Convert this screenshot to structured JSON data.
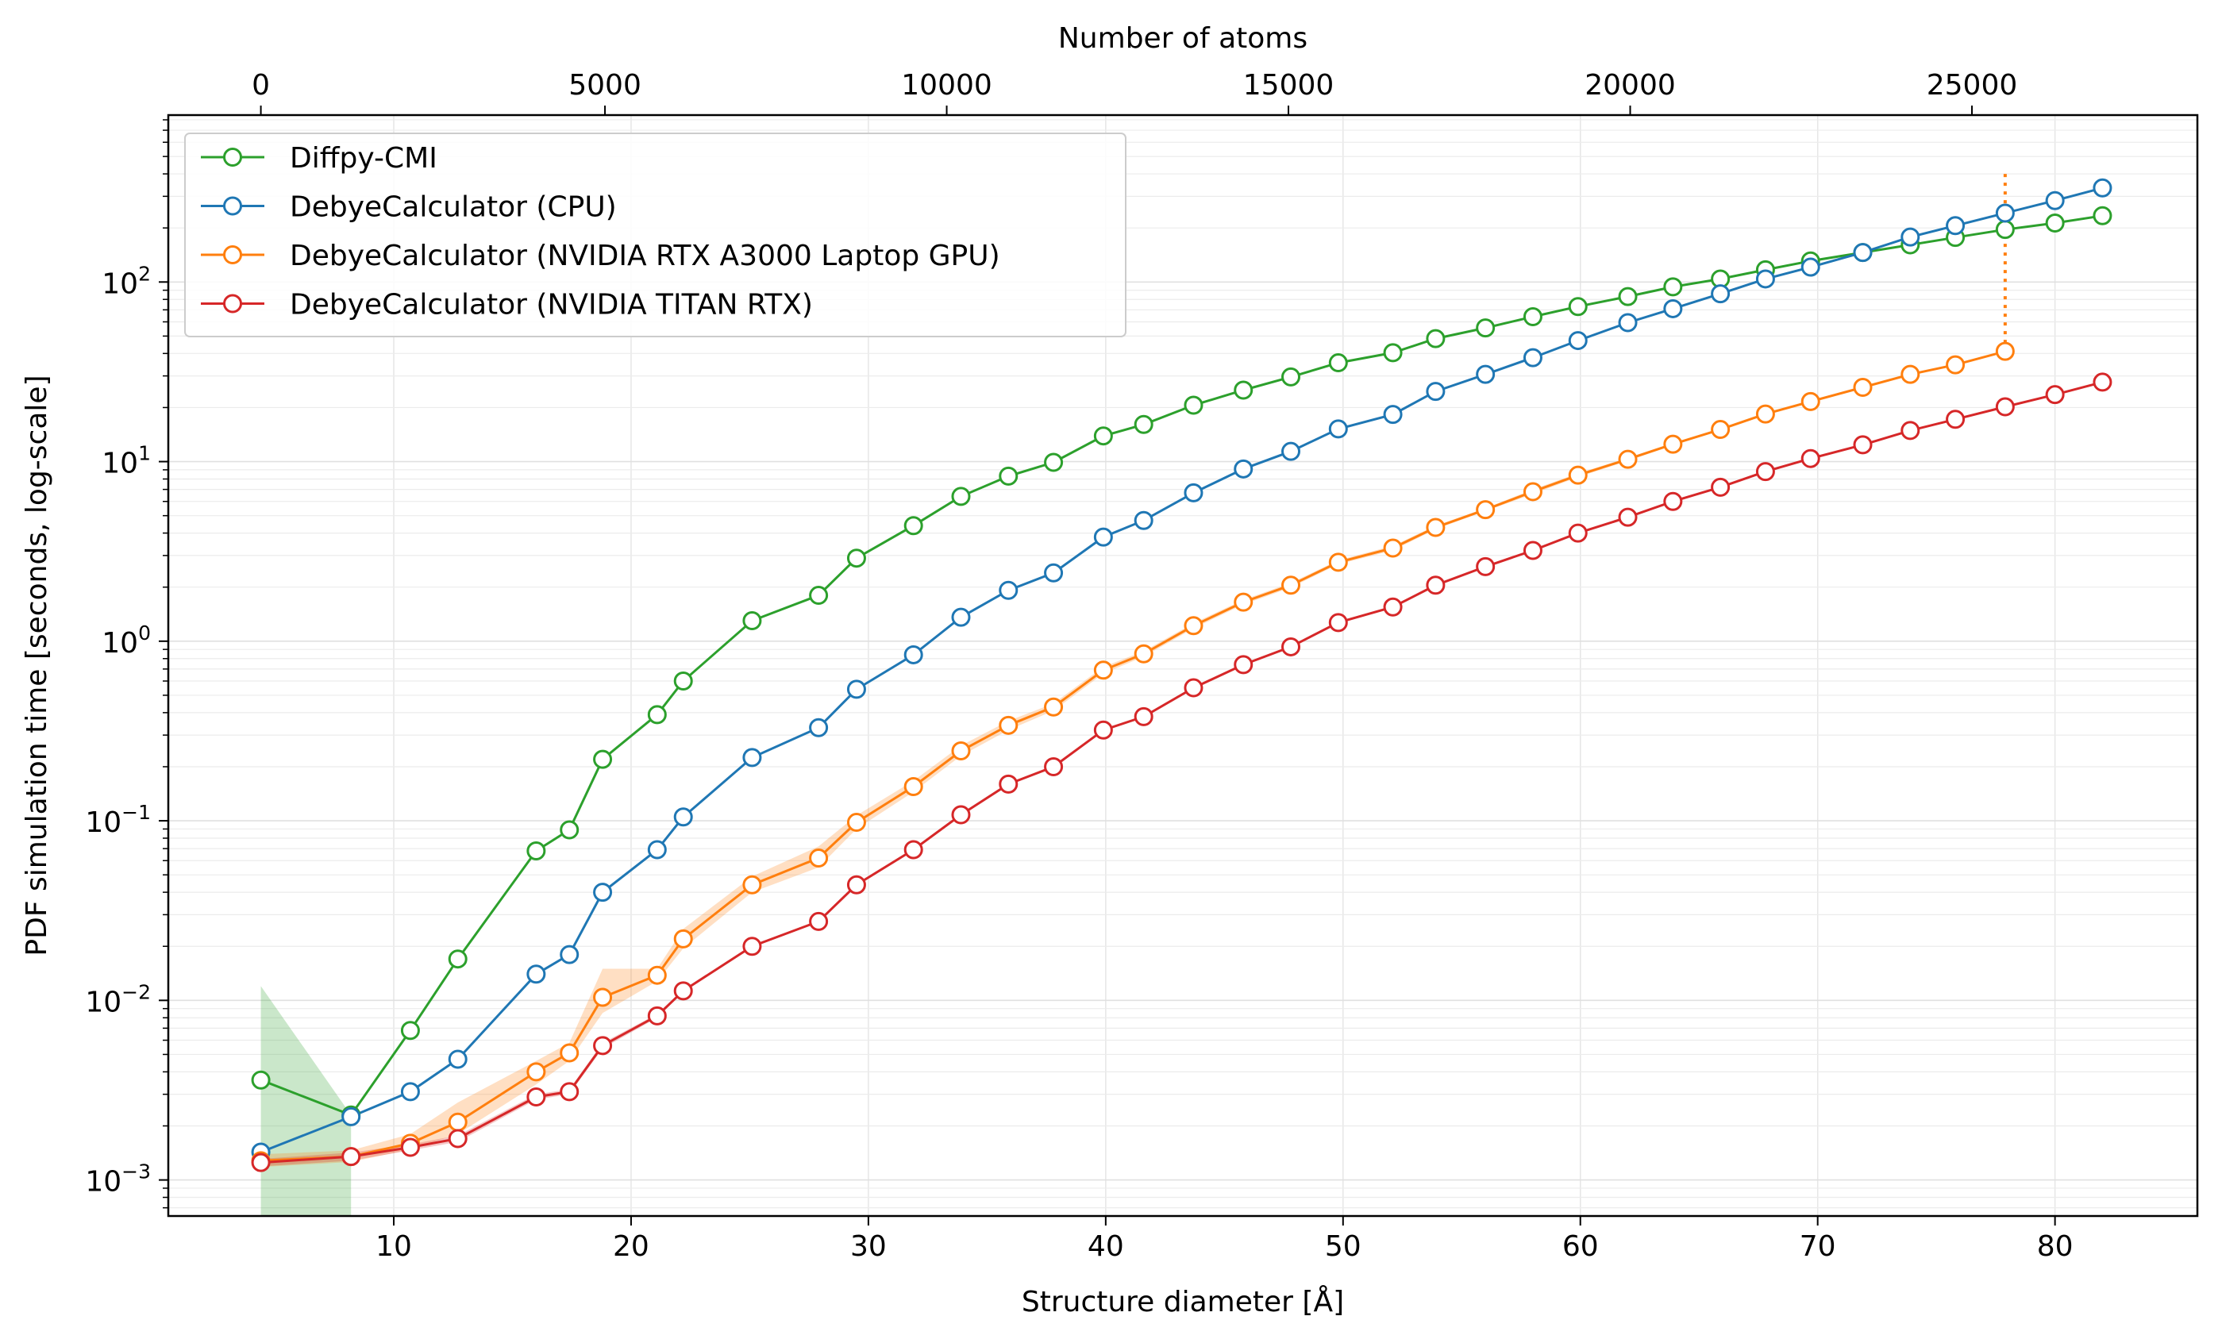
{
  "chart_data": {
    "type": "line",
    "xlabel": "Structure diameter [Å]",
    "ylabel": "PDF simulation time [seconds, log-scale]",
    "x2label": "Number of atoms",
    "xlim": [
      0.5,
      86
    ],
    "ylim": [
      0.00063,
      850
    ],
    "yscale": "log",
    "grid": true,
    "legend_position": "upper-left",
    "x_ticks": [
      10,
      20,
      30,
      40,
      50,
      60,
      70,
      80
    ],
    "x_tick_labels": [
      "10",
      "20",
      "30",
      "40",
      "50",
      "60",
      "70",
      "80"
    ],
    "y_ticks": [
      0.001,
      0.01,
      0.1,
      1,
      10,
      100
    ],
    "y_tick_labels": [
      {
        "base": "10",
        "exp": "−3"
      },
      {
        "base": "10",
        "exp": "−2"
      },
      {
        "base": "10",
        "exp": "−1"
      },
      {
        "base": "10",
        "exp": "0"
      },
      {
        "base": "10",
        "exp": "1"
      },
      {
        "base": "10",
        "exp": "2"
      }
    ],
    "x2_ticks": [
      0,
      5000,
      10000,
      15000,
      20000,
      25000
    ],
    "x2_tick_labels": [
      "0",
      "5000",
      "10000",
      "15000",
      "20000",
      "25000"
    ],
    "x2_tick_positions_diameter": [
      4.4,
      18.9,
      33.3,
      47.7,
      62.1,
      76.5
    ],
    "x": [
      4.4,
      8.2,
      10.7,
      12.7,
      16.0,
      17.4,
      18.8,
      21.1,
      22.2,
      25.1,
      27.9,
      29.5,
      31.9,
      33.9,
      35.9,
      37.8,
      39.9,
      41.6,
      43.7,
      45.8,
      47.8,
      49.8,
      52.1,
      53.9,
      56.0,
      58.0,
      59.9,
      62.0,
      63.9,
      65.9,
      67.8,
      69.7,
      71.9,
      73.9,
      75.8,
      77.9,
      80.0,
      82.0
    ],
    "series": [
      {
        "name": "Diffpy-CMI",
        "color": "#2ca02c",
        "values": [
          0.0036,
          0.0023,
          0.0068,
          0.017,
          0.068,
          0.089,
          0.22,
          0.39,
          0.6,
          1.3,
          1.8,
          2.9,
          4.4,
          6.4,
          8.3,
          9.9,
          13.9,
          16.1,
          20.6,
          25.0,
          29.6,
          35.5,
          40.4,
          48.4,
          55.5,
          64.1,
          73.0,
          83.0,
          94.0,
          104,
          117,
          131,
          146,
          161,
          177,
          196,
          213,
          234
        ],
        "band_low": [
          0.0005,
          0.0005,
          null,
          null,
          null,
          null,
          null,
          null,
          null,
          null,
          null,
          null,
          null,
          null,
          null,
          null,
          null,
          null,
          null,
          null,
          null,
          null,
          null,
          null,
          null,
          null,
          null,
          null,
          null,
          null,
          null,
          null,
          null,
          null,
          null,
          null,
          null,
          null
        ],
        "band_high": [
          0.012,
          0.0023,
          null,
          null,
          null,
          null,
          null,
          null,
          null,
          null,
          null,
          null,
          null,
          null,
          null,
          null,
          null,
          null,
          null,
          null,
          null,
          null,
          null,
          null,
          null,
          null,
          null,
          null,
          null,
          null,
          null,
          null,
          null,
          null,
          null,
          null,
          null,
          null
        ]
      },
      {
        "name": "DebyeCalculator (CPU)",
        "color": "#1f77b4",
        "values": [
          0.00143,
          0.00225,
          0.0031,
          0.0047,
          0.014,
          0.018,
          0.04,
          0.069,
          0.105,
          0.225,
          0.33,
          0.54,
          0.84,
          1.36,
          1.92,
          2.4,
          3.8,
          4.7,
          6.7,
          9.1,
          11.4,
          15.2,
          18.3,
          24.6,
          30.6,
          37.9,
          47.2,
          59.4,
          71.0,
          86.0,
          104,
          121,
          146,
          178,
          206,
          242,
          284,
          334
        ]
      },
      {
        "name": "DebyeCalculator (NVIDIA RTX A3000 Laptop GPU)",
        "color": "#ff7f0e",
        "values": [
          0.00128,
          0.00135,
          0.0016,
          0.0021,
          0.004,
          0.0051,
          0.0104,
          0.0138,
          0.022,
          0.044,
          0.062,
          0.098,
          0.155,
          0.245,
          0.34,
          0.43,
          0.69,
          0.85,
          1.22,
          1.65,
          2.05,
          2.75,
          3.3,
          4.3,
          5.4,
          6.8,
          8.4,
          10.3,
          12.5,
          15.1,
          18.4,
          21.6,
          25.9,
          30.6,
          34.6,
          41.1,
          null,
          null
        ],
        "band_low": [
          0.00118,
          0.00126,
          0.00148,
          0.0018,
          0.0034,
          0.0046,
          0.0085,
          0.0128,
          0.0195,
          0.04,
          0.055,
          0.09,
          0.145,
          0.23,
          0.32,
          0.41,
          0.66,
          0.82,
          1.18,
          1.6,
          1.99,
          2.68,
          3.2,
          4.2,
          5.3,
          6.6,
          8.2,
          10.1,
          12.3,
          14.9,
          18.1,
          21.3,
          25.6,
          30.2,
          34.2,
          40.6,
          null,
          null
        ],
        "band_high": [
          0.00139,
          0.00146,
          0.0018,
          0.0027,
          0.0046,
          0.0058,
          0.015,
          0.015,
          0.025,
          0.049,
          0.072,
          0.107,
          0.167,
          0.262,
          0.36,
          0.45,
          0.72,
          0.88,
          1.26,
          1.7,
          2.11,
          2.82,
          3.4,
          4.4,
          5.5,
          7.0,
          8.6,
          10.5,
          12.7,
          15.3,
          18.7,
          21.9,
          26.2,
          31.0,
          35.0,
          41.6,
          null,
          null
        ]
      },
      {
        "name": "DebyeCalculator (NVIDIA TITAN RTX)",
        "color": "#d62728",
        "values": [
          0.00125,
          0.00135,
          0.00152,
          0.0017,
          0.0029,
          0.0031,
          0.0056,
          0.0082,
          0.0113,
          0.02,
          0.0275,
          0.044,
          0.069,
          0.108,
          0.16,
          0.2,
          0.32,
          0.38,
          0.55,
          0.74,
          0.93,
          1.27,
          1.55,
          2.05,
          2.6,
          3.2,
          4.0,
          4.9,
          6.0,
          7.2,
          8.8,
          10.4,
          12.4,
          14.9,
          17.2,
          20.2,
          23.6,
          27.7
        ],
        "band_low": [
          0.00119,
          0.00128,
          0.00146,
          0.00163,
          0.0028,
          0.003,
          0.0054,
          0.008,
          0.0111,
          0.0197,
          0.0271,
          0.0435,
          0.068,
          0.107,
          0.158,
          0.198,
          0.317,
          0.376,
          0.545,
          0.735,
          0.925,
          1.265,
          1.545,
          2.045,
          2.595,
          3.195,
          3.995,
          4.895,
          5.995,
          7.195,
          8.795,
          10.395,
          12.395,
          14.895,
          17.195,
          20.195,
          23.595,
          27.695
        ],
        "band_high": [
          0.00131,
          0.00142,
          0.00158,
          0.00177,
          0.003,
          0.0032,
          0.0058,
          0.0084,
          0.0115,
          0.0203,
          0.0279,
          0.0445,
          0.07,
          0.109,
          0.162,
          0.202,
          0.323,
          0.384,
          0.555,
          0.745,
          0.935,
          1.275,
          1.555,
          2.055,
          2.605,
          3.205,
          4.005,
          4.905,
          6.005,
          7.205,
          8.805,
          10.405,
          12.405,
          14.905,
          17.205,
          20.205,
          23.605,
          27.705
        ]
      }
    ],
    "annotations": [
      {
        "type": "vertical-dotted-line",
        "color": "#ff7f0e",
        "x": 77.9,
        "y_from": 41.1,
        "y_to": 400
      }
    ]
  }
}
